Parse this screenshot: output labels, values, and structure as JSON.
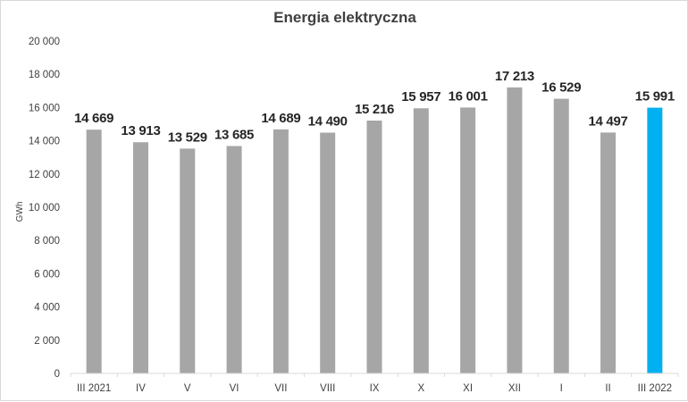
{
  "chart_data": {
    "type": "bar",
    "title": "Energia elektryczna",
    "ylabel": "GWh",
    "xlabel": "",
    "categories": [
      "III 2021",
      "IV",
      "V",
      "VI",
      "VII",
      "VIII",
      "IX",
      "X",
      "XI",
      "XII",
      "I",
      "II",
      "III 2022"
    ],
    "values": [
      14669,
      13913,
      13529,
      13685,
      14689,
      14490,
      15216,
      15957,
      16001,
      17213,
      16529,
      14497,
      15991
    ],
    "value_labels": [
      "14 669",
      "13 913",
      "13 529",
      "13 685",
      "14 689",
      "14 490",
      "15 216",
      "15 957",
      "16 001",
      "17 213",
      "16 529",
      "14 497",
      "15 991"
    ],
    "ylim": [
      0,
      20000
    ],
    "yticks": [
      0,
      2000,
      4000,
      6000,
      8000,
      10000,
      12000,
      14000,
      16000,
      18000,
      20000
    ],
    "ytick_labels": [
      "0",
      "2 000",
      "4 000",
      "6 000",
      "8 000",
      "10 000",
      "12 000",
      "14 000",
      "16 000",
      "18 000",
      "20 000"
    ],
    "grid": false,
    "legend": "none",
    "colors": {
      "bar": "#a6a6a6",
      "highlight": "#00b0f0",
      "axis": "#d9d9d9",
      "text": "#404040"
    },
    "highlight_index": 12
  }
}
